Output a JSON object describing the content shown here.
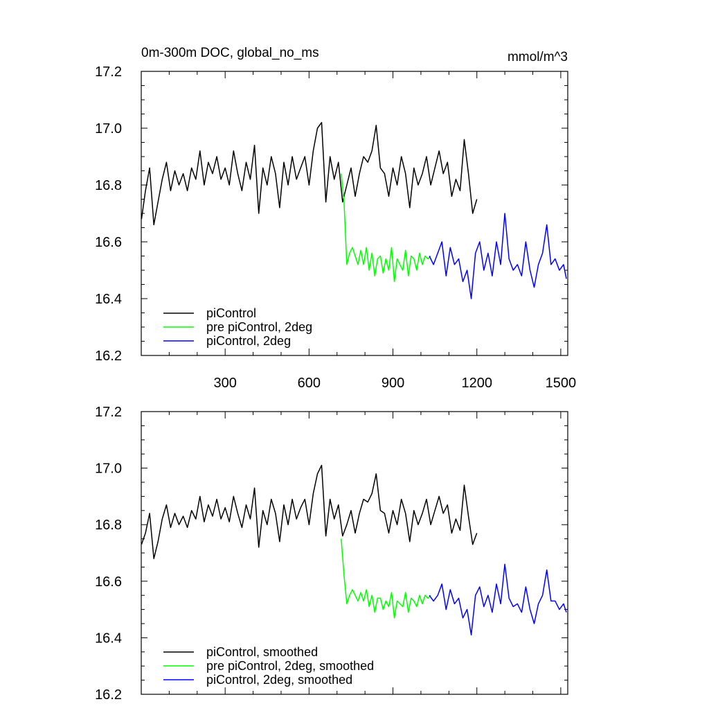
{
  "chart_data": [
    {
      "type": "line",
      "title": "0m-300m DOC, global_no_ms",
      "units": "mmol/m^3",
      "xlim": [
        0,
        1525
      ],
      "ylim": [
        16.2,
        17.2
      ],
      "xticks": [
        300,
        600,
        900,
        1200,
        1500
      ],
      "yticks": [
        16.2,
        16.4,
        16.6,
        16.8,
        17.0,
        17.2
      ],
      "show_xtick_labels": true,
      "legend_position": "bottom-left",
      "series": [
        {
          "name": "piControl",
          "color": "#000000",
          "x": [
            1,
            15,
            30,
            45,
            60,
            75,
            90,
            105,
            120,
            135,
            150,
            165,
            180,
            195,
            210,
            225,
            240,
            255,
            270,
            285,
            300,
            315,
            330,
            345,
            360,
            375,
            390,
            405,
            420,
            435,
            450,
            465,
            480,
            495,
            510,
            525,
            540,
            555,
            570,
            585,
            600,
            615,
            630,
            645,
            660,
            675,
            690,
            705,
            720,
            735,
            750,
            765,
            780,
            795,
            810,
            825,
            840,
            855,
            870,
            885,
            900,
            915,
            930,
            945,
            960,
            975,
            990,
            1005,
            1020,
            1035,
            1050,
            1065,
            1080,
            1095,
            1110,
            1125,
            1140,
            1155,
            1170,
            1185,
            1200
          ],
          "y": [
            16.68,
            16.78,
            16.86,
            16.66,
            16.74,
            16.82,
            16.88,
            16.78,
            16.85,
            16.8,
            16.84,
            16.78,
            16.86,
            16.82,
            16.92,
            16.8,
            16.88,
            16.84,
            16.9,
            16.82,
            16.86,
            16.8,
            16.92,
            16.84,
            16.78,
            16.88,
            16.82,
            16.94,
            16.7,
            16.86,
            16.8,
            16.9,
            16.84,
            16.72,
            16.88,
            16.8,
            16.9,
            16.82,
            16.86,
            16.9,
            16.8,
            16.92,
            17.0,
            17.02,
            16.74,
            16.9,
            16.82,
            16.88,
            16.74,
            16.8,
            16.86,
            16.76,
            16.84,
            16.9,
            16.88,
            16.92,
            17.01,
            16.86,
            16.84,
            16.76,
            16.86,
            16.8,
            16.9,
            16.84,
            16.72,
            16.86,
            16.8,
            16.84,
            16.9,
            16.8,
            16.86,
            16.92,
            16.84,
            16.88,
            16.76,
            16.82,
            16.78,
            16.96,
            16.84,
            16.7,
            16.75
          ]
        },
        {
          "name": "pre piControl, 2deg",
          "color": "#00ff00",
          "x": [
            715,
            725,
            735,
            745,
            755,
            765,
            775,
            785,
            795,
            805,
            815,
            825,
            835,
            845,
            855,
            865,
            875,
            885,
            895,
            905,
            915,
            925,
            935,
            945,
            955,
            965,
            975,
            985,
            995,
            1005,
            1015,
            1025,
            1035
          ],
          "y": [
            16.84,
            16.74,
            16.52,
            16.56,
            16.58,
            16.55,
            16.52,
            16.57,
            16.52,
            16.58,
            16.5,
            16.56,
            16.48,
            16.54,
            16.55,
            16.49,
            16.54,
            16.5,
            16.58,
            16.46,
            16.54,
            16.52,
            16.5,
            16.57,
            16.48,
            16.55,
            16.54,
            16.5,
            16.56,
            16.52,
            16.55,
            16.54,
            16.55
          ]
        },
        {
          "name": "piControl, 2deg",
          "color": "#0000ff",
          "x": [
            1030,
            1045,
            1060,
            1075,
            1090,
            1105,
            1120,
            1135,
            1150,
            1165,
            1180,
            1195,
            1210,
            1225,
            1240,
            1255,
            1270,
            1285,
            1300,
            1315,
            1330,
            1345,
            1360,
            1375,
            1390,
            1405,
            1420,
            1435,
            1450,
            1465,
            1480,
            1495,
            1510,
            1520
          ],
          "y": [
            16.55,
            16.52,
            16.56,
            16.6,
            16.48,
            16.58,
            16.52,
            16.54,
            16.46,
            16.5,
            16.4,
            16.56,
            16.6,
            16.5,
            16.56,
            16.48,
            16.6,
            16.52,
            16.7,
            16.54,
            16.5,
            16.52,
            16.48,
            16.6,
            16.5,
            16.44,
            16.52,
            16.56,
            16.66,
            16.52,
            16.54,
            16.5,
            16.52,
            16.47
          ]
        }
      ]
    },
    {
      "type": "line",
      "title": "",
      "units": "",
      "xlim": [
        0,
        1525
      ],
      "ylim": [
        16.2,
        17.2
      ],
      "xticks": [
        300,
        600,
        900,
        1200,
        1500
      ],
      "yticks": [
        16.2,
        16.4,
        16.6,
        16.8,
        17.0,
        17.2
      ],
      "show_xtick_labels": false,
      "legend_position": "bottom-left",
      "series": [
        {
          "name": "piControl, smoothed",
          "color": "#000000",
          "x": [
            1,
            15,
            30,
            45,
            60,
            75,
            90,
            105,
            120,
            135,
            150,
            165,
            180,
            195,
            210,
            225,
            240,
            255,
            270,
            285,
            300,
            315,
            330,
            345,
            360,
            375,
            390,
            405,
            420,
            435,
            450,
            465,
            480,
            495,
            510,
            525,
            540,
            555,
            570,
            585,
            600,
            615,
            630,
            645,
            660,
            675,
            690,
            705,
            720,
            735,
            750,
            765,
            780,
            795,
            810,
            825,
            840,
            855,
            870,
            885,
            900,
            915,
            930,
            945,
            960,
            975,
            990,
            1005,
            1020,
            1035,
            1050,
            1065,
            1080,
            1095,
            1110,
            1125,
            1140,
            1155,
            1170,
            1185,
            1200
          ],
          "y": [
            16.73,
            16.77,
            16.84,
            16.68,
            16.74,
            16.82,
            16.87,
            16.79,
            16.84,
            16.8,
            16.83,
            16.79,
            16.85,
            16.82,
            16.9,
            16.81,
            16.87,
            16.83,
            16.89,
            16.82,
            16.86,
            16.81,
            16.9,
            16.84,
            16.79,
            16.87,
            16.82,
            16.93,
            16.72,
            16.85,
            16.8,
            16.89,
            16.84,
            16.74,
            16.87,
            16.8,
            16.89,
            16.82,
            16.86,
            16.89,
            16.8,
            16.91,
            16.98,
            17.01,
            16.76,
            16.89,
            16.82,
            16.87,
            16.76,
            16.8,
            16.85,
            16.77,
            16.84,
            16.89,
            16.88,
            16.91,
            16.98,
            16.85,
            16.84,
            16.77,
            16.85,
            16.8,
            16.89,
            16.84,
            16.74,
            16.85,
            16.8,
            16.84,
            16.89,
            16.8,
            16.85,
            16.9,
            16.84,
            16.87,
            16.77,
            16.82,
            16.78,
            16.94,
            16.83,
            16.73,
            16.77
          ]
        },
        {
          "name": "pre piControl, 2deg, smoothed",
          "color": "#00ff00",
          "x": [
            715,
            725,
            735,
            745,
            755,
            765,
            775,
            785,
            795,
            805,
            815,
            825,
            835,
            845,
            855,
            865,
            875,
            885,
            895,
            905,
            915,
            925,
            935,
            945,
            955,
            965,
            975,
            985,
            995,
            1005,
            1015,
            1025,
            1035
          ],
          "y": [
            16.75,
            16.62,
            16.52,
            16.55,
            16.57,
            16.55,
            16.53,
            16.56,
            16.53,
            16.57,
            16.51,
            16.55,
            16.49,
            16.54,
            16.54,
            16.5,
            16.53,
            16.51,
            16.56,
            16.47,
            16.53,
            16.52,
            16.51,
            16.56,
            16.49,
            16.54,
            16.53,
            16.51,
            16.55,
            16.52,
            16.55,
            16.54,
            16.55
          ]
        },
        {
          "name": "piControl, 2deg, smoothed",
          "color": "#0000ff",
          "x": [
            1030,
            1045,
            1060,
            1075,
            1090,
            1105,
            1120,
            1135,
            1150,
            1165,
            1180,
            1195,
            1210,
            1225,
            1240,
            1255,
            1270,
            1285,
            1300,
            1315,
            1330,
            1345,
            1360,
            1375,
            1390,
            1405,
            1420,
            1435,
            1450,
            1465,
            1480,
            1495,
            1510,
            1520
          ],
          "y": [
            16.55,
            16.53,
            16.55,
            16.59,
            16.5,
            16.57,
            16.52,
            16.54,
            16.47,
            16.5,
            16.41,
            16.55,
            16.58,
            16.51,
            16.55,
            16.49,
            16.59,
            16.52,
            16.66,
            16.54,
            16.51,
            16.52,
            16.49,
            16.58,
            16.5,
            16.45,
            16.52,
            16.55,
            16.64,
            16.53,
            16.53,
            16.5,
            16.52,
            16.49
          ]
        }
      ]
    }
  ]
}
